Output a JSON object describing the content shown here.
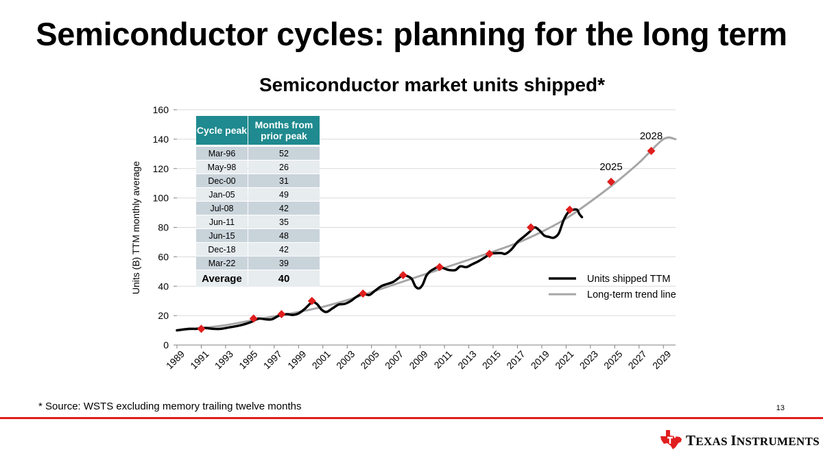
{
  "slide": {
    "title": "Semiconductor cycles: planning for the long term",
    "footnote": "* Source: WSTS excluding memory trailing twelve months",
    "page_number": "13",
    "brand": "Texas Instruments",
    "colors": {
      "accent_red": "#e01e1e",
      "table_header": "#1f8a8f",
      "series_actual": "#000000",
      "series_trend": "#a6a6a6"
    }
  },
  "chart_data": {
    "type": "line",
    "title": "Semiconductor market units shipped*",
    "ylabel": "Units (B) TTM monthly average",
    "xlabel": "",
    "xlim": [
      1989,
      2030
    ],
    "ylim": [
      0,
      160
    ],
    "yticks": [
      0,
      20,
      40,
      60,
      80,
      100,
      120,
      140,
      160
    ],
    "xticks": [
      "1989",
      "1991",
      "1993",
      "1995",
      "1997",
      "1999",
      "2001",
      "2003",
      "2005",
      "2007",
      "2009",
      "2011",
      "2013",
      "2015",
      "2017",
      "2019",
      "2021",
      "2023",
      "2025",
      "2027",
      "2029"
    ],
    "grid": "horizontal",
    "legend": "bottom-right",
    "series": [
      {
        "name": "Units shipped TTM",
        "color": "#000000",
        "x": [
          1989.0,
          1990.0,
          1990.6,
          1991.3,
          1992.0,
          1992.6,
          1993.3,
          1994.0,
          1994.7,
          1995.2,
          1995.7,
          1996.3,
          1996.8,
          1997.4,
          1998.0,
          1998.5,
          1999.0,
          1999.5,
          2000.1,
          2000.5,
          2000.9,
          2001.3,
          2001.8,
          2002.3,
          2002.8,
          2003.3,
          2003.8,
          2004.3,
          2004.8,
          2005.3,
          2005.8,
          2006.3,
          2006.8,
          2007.3,
          2007.6,
          2007.9,
          2008.3,
          2008.6,
          2008.9,
          2009.2,
          2009.5,
          2009.8,
          2010.2,
          2010.6,
          2011.0,
          2011.4,
          2011.9,
          2012.3,
          2012.8,
          2013.3,
          2013.8,
          2014.3,
          2014.8,
          2015.3,
          2015.7,
          2016.0,
          2016.5,
          2017.0,
          2017.5,
          2018.0,
          2018.4,
          2018.8,
          2019.2,
          2019.6,
          2020.0,
          2020.4,
          2020.8,
          2021.2,
          2021.6,
          2021.9,
          2022.1,
          2022.3
        ],
        "y": [
          10,
          11,
          11,
          11.5,
          11,
          11,
          12,
          13,
          14.5,
          16,
          18,
          17.5,
          17.5,
          20,
          21,
          20.5,
          21.5,
          24.5,
          29,
          28,
          24,
          22.5,
          25,
          27.5,
          28,
          30,
          33,
          35,
          34,
          37,
          40,
          41.5,
          43,
          46,
          47.5,
          47,
          45,
          40,
          38.5,
          41,
          47,
          50,
          52,
          53.5,
          52,
          51,
          51,
          53.5,
          53,
          55,
          57,
          59.5,
          62,
          62.5,
          62.5,
          62,
          65,
          70,
          73.5,
          77,
          80,
          78,
          74.5,
          73.5,
          73,
          76,
          85,
          90.5,
          92,
          92,
          89,
          87
        ]
      },
      {
        "name": "Long-term trend line",
        "color": "#a6a6a6",
        "x": [
          1989,
          1991,
          1993,
          1995,
          1997,
          1999,
          2001,
          2003,
          2005,
          2007,
          2009,
          2011,
          2013,
          2015,
          2017,
          2019,
          2021,
          2023,
          2025,
          2027,
          2029,
          2030
        ],
        "y": [
          10,
          11.5,
          13.5,
          16.5,
          19.5,
          22.5,
          26,
          30.5,
          36,
          41.5,
          47,
          52.5,
          58,
          63.5,
          69.5,
          77,
          86,
          97.5,
          110,
          124,
          140,
          140
        ]
      }
    ],
    "peak_markers": {
      "color": "#e01e1e",
      "x": [
        1991.0,
        1995.3,
        1997.6,
        2000.1,
        2004.3,
        2007.6,
        2010.6,
        2014.7,
        2018.1,
        2021.3,
        2024.7,
        2028.0
      ],
      "y": [
        11,
        18,
        21,
        30,
        35,
        47.5,
        53,
        62,
        80,
        92,
        111,
        132
      ]
    },
    "annotations": [
      {
        "text": "2025",
        "x": 2024.7,
        "y": 111
      },
      {
        "text": "2028",
        "x": 2028.0,
        "y": 132
      }
    ],
    "table": {
      "headers": [
        "Cycle peak",
        "Months from prior peak"
      ],
      "rows": [
        [
          "Mar-96",
          "52"
        ],
        [
          "May-98",
          "26"
        ],
        [
          "Dec-00",
          "31"
        ],
        [
          "Jan-05",
          "49"
        ],
        [
          "Jul-08",
          "42"
        ],
        [
          "Jun-11",
          "35"
        ],
        [
          "Jun-15",
          "48"
        ],
        [
          "Dec-18",
          "42"
        ],
        [
          "Mar-22",
          "39"
        ]
      ],
      "average": {
        "label": "Average",
        "value": "40"
      }
    }
  }
}
